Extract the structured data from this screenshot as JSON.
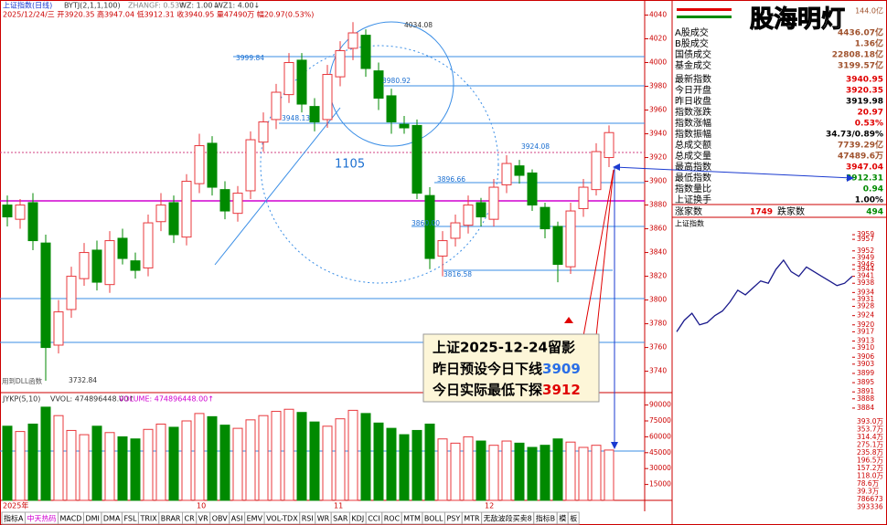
{
  "header": {
    "title": "上证指数(日线)",
    "indicator": "BYTJ(2,1,1,100)",
    "zhangf": "ZHANGF: 0.53↑",
    "wz": "WZ: 1.00↓",
    "wz1": "WZ1: 4.00↓",
    "info": "2025/12/24/三 开3920.35 高3947.04 低3912.31 收3940.95 量47490万 幅20.97(0.53%)"
  },
  "chart_data": [
    {
      "type": "candlestick",
      "up_color": "#e8383d",
      "down_color": "#008a00",
      "open": [
        3880,
        3868,
        3882,
        3848,
        3762,
        3792,
        3818,
        3842,
        3813,
        3852,
        3833,
        3827,
        3866,
        3882,
        3853,
        3898,
        3932,
        3893,
        3873,
        3892,
        3933,
        3952,
        3973,
        4002,
        3963,
        3952,
        3988,
        4012,
        4023,
        3993,
        3972,
        3948,
        3947,
        3888,
        3837,
        3852,
        3863,
        3882,
        3868,
        3897,
        3913,
        3907,
        3878,
        3862,
        3828,
        3877,
        3893,
        3920
      ],
      "high": [
        3888,
        3885,
        3890,
        3855,
        3800,
        3828,
        3848,
        3850,
        3858,
        3860,
        3840,
        3872,
        3890,
        3888,
        3906,
        3940,
        3938,
        3900,
        3896,
        3942,
        3958,
        3982,
        4008,
        4008,
        3970,
        3998,
        4018,
        4034,
        4028,
        4000,
        3978,
        3955,
        3952,
        3895,
        3858,
        3872,
        3888,
        3886,
        3902,
        3922,
        3918,
        3910,
        3882,
        3866,
        3882,
        3902,
        3932,
        3947
      ],
      "low": [
        3862,
        3860,
        3842,
        3732,
        3755,
        3785,
        3812,
        3808,
        3806,
        3830,
        3818,
        3820,
        3858,
        3848,
        3846,
        3890,
        3888,
        3868,
        3866,
        3885,
        3925,
        3944,
        3966,
        3958,
        3942,
        3945,
        3980,
        4002,
        3988,
        3960,
        3940,
        3940,
        3885,
        3826,
        3820,
        3845,
        3856,
        3862,
        3862,
        3890,
        3898,
        3875,
        3852,
        3815,
        3822,
        3870,
        3888,
        3912
      ],
      "close": [
        3870,
        3880,
        3850,
        3760,
        3790,
        3820,
        3840,
        3815,
        3850,
        3835,
        3825,
        3865,
        3880,
        3855,
        3900,
        3930,
        3895,
        3875,
        3890,
        3935,
        3950,
        3975,
        4000,
        3965,
        3950,
        3990,
        4010,
        4025,
        3995,
        3970,
        3950,
        3945,
        3890,
        3835,
        3850,
        3865,
        3880,
        3870,
        3895,
        3915,
        3905,
        3880,
        3860,
        3830,
        3875,
        3895,
        3925,
        3941
      ],
      "ylim": [
        3722,
        4045
      ],
      "yticks": [
        3740,
        3760,
        3780,
        3800,
        3820,
        3840,
        3860,
        3880,
        3900,
        3920,
        3940,
        3960,
        3980,
        4000,
        4020,
        4040
      ]
    },
    {
      "type": "bar",
      "title": "JYKP(5,10)",
      "vvol": "VVOL: 474896448.00↑",
      "volume": "VOLUME: 474896448.00↑",
      "values": [
        70000,
        65000,
        72000,
        88000,
        80000,
        66000,
        62000,
        70000,
        64000,
        60000,
        58000,
        67000,
        72000,
        69000,
        75000,
        82000,
        79000,
        71000,
        68000,
        76000,
        80000,
        84000,
        86000,
        83000,
        74000,
        70000,
        77000,
        85000,
        82000,
        73000,
        68000,
        62000,
        66000,
        72000,
        58000,
        54000,
        60000,
        56000,
        52000,
        56000,
        54000,
        50000,
        52000,
        58000,
        55000,
        50000,
        52000,
        47490
      ],
      "ylim": [
        0,
        100000
      ],
      "yticks": [
        90000,
        75000,
        60000,
        45000,
        30000,
        15000
      ]
    },
    {
      "type": "line",
      "title": "上证指数",
      "color": "#1a1a8c",
      "values": [
        3917,
        3922,
        3925,
        3920,
        3921,
        3924,
        3926,
        3930,
        3935,
        3933,
        3936,
        3939,
        3938,
        3944,
        3948,
        3943,
        3941,
        3945,
        3943,
        3941,
        3939,
        3937,
        3938,
        3941
      ],
      "ylim": [
        3882,
        3961
      ],
      "yticks": [
        3959,
        3957,
        3952,
        3949,
        3946,
        3944,
        3941,
        3938,
        3934,
        3931,
        3928,
        3924,
        3920,
        3917,
        3913,
        3910,
        3906,
        3903,
        3899,
        3895,
        3891,
        3888,
        3884
      ],
      "volume_labels": [
        "393.0万",
        "353.7万",
        "314.4万",
        "275.1万",
        "235.8万",
        "196.5万",
        "157.2万",
        "118.0万",
        "78.6万",
        "39.3万",
        "786673",
        "393336"
      ]
    }
  ],
  "annotations": [
    "4034.08",
    "3999.84",
    "3980.92",
    "3948.13",
    "3924.08",
    "3896.66",
    "3860.00",
    "3816.58",
    "1105",
    "3732.84",
    "用到DLL函数"
  ],
  "callout": {
    "line1": "上证2025-12-24留影",
    "line2": "昨日预设今日下线",
    "line2_value": "3909",
    "line3": "今日实际最低下探",
    "line3_value": "3912"
  },
  "x_axis_labels": [
    "2025年",
    "10",
    "11",
    "12"
  ],
  "tabs": [
    "指标A",
    "中天热码",
    "MACD",
    "DMI",
    "DMA",
    "FSL",
    "TRIX",
    "BRAR",
    "CR",
    "VR",
    "OBV",
    "ASI",
    "EMV",
    "VOL-TDX",
    "RSI",
    "WR",
    "SAR",
    "KDJ",
    "CCI",
    "ROC",
    "MTM",
    "BOLL",
    "PSY",
    "MTR",
    "无敌波段买卖8",
    "指标B",
    "模",
    "板"
  ],
  "side_panel": {
    "top_value": "144.0亿",
    "rows": [
      {
        "label": "A股成交",
        "value": "4436.07亿",
        "color": "#a0522d"
      },
      {
        "label": "B股成交",
        "value": "1.36亿",
        "color": "#a0522d"
      },
      {
        "label": "国债成交",
        "value": "22808.18亿",
        "color": "#a0522d"
      },
      {
        "label": "基金成交",
        "value": "3199.57亿",
        "color": "#a0522d"
      },
      {
        "label": "最新指数",
        "value": "3940.95",
        "color": "#e00000"
      },
      {
        "label": "今日开盘",
        "value": "3920.35",
        "color": "#e00000"
      },
      {
        "label": "昨日收盘",
        "value": "3919.98",
        "color": "#000000"
      },
      {
        "label": "指数涨跌",
        "value": "20.97",
        "color": "#e00000"
      },
      {
        "label": "指数涨幅",
        "value": "0.53%",
        "color": "#e00000"
      },
      {
        "label": "指数振幅",
        "value": "34.73/0.89%",
        "color": "#000000"
      },
      {
        "label": "总成交额",
        "value": "7739.29亿",
        "color": "#a0522d"
      },
      {
        "label": "总成交量",
        "value": "47489.6万",
        "color": "#a0522d"
      },
      {
        "label": "最高指数",
        "value": "3947.04",
        "color": "#e00000"
      },
      {
        "label": "最低指数",
        "value": "3912.31",
        "color": "#008a00"
      },
      {
        "label": "指数量比",
        "value": "0.94",
        "color": "#008a00"
      },
      {
        "label": "上证换手",
        "value": "1.00%",
        "color": "#000000"
      }
    ],
    "up_label": "涨家数",
    "up_count": "1749",
    "down_label": "跌家数",
    "down_count": "494"
  },
  "watermark": "股海明灯"
}
